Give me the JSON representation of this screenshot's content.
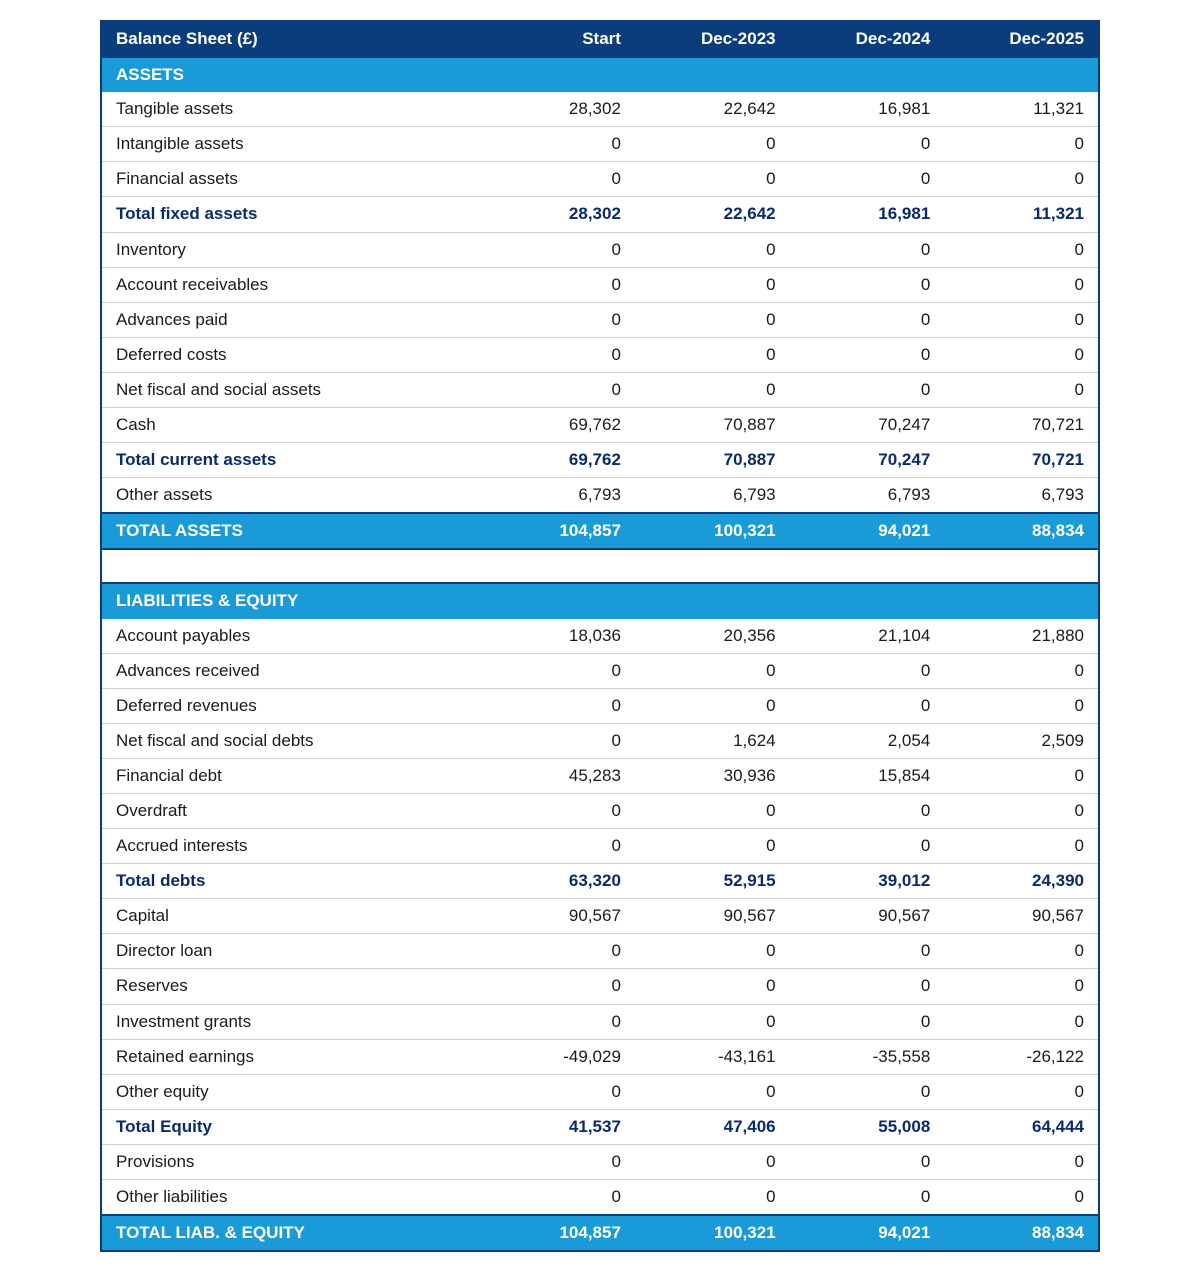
{
  "table": {
    "type": "table",
    "title_label": "Balance Sheet (£)",
    "columns": [
      "Start",
      "Dec-2023",
      "Dec-2024",
      "Dec-2025"
    ],
    "col_widths_pct": [
      38,
      15.5,
      15.5,
      15.5,
      15.5
    ],
    "col_align": [
      "left",
      "right",
      "right",
      "right",
      "right"
    ],
    "font_family": "Arial",
    "font_size_pt": 13,
    "colors": {
      "header_bg": "#0a3d7a",
      "header_text": "#ffffff",
      "section_bg": "#1a9bd7",
      "section_text": "#ffffff",
      "total_bg": "#1a9bd7",
      "total_text": "#ffffff",
      "subtotal_text": "#0a2a6b",
      "body_text": "#1a1a1a",
      "body_bg": "#ffffff",
      "row_border": "#d0d0d0",
      "outer_border": "#0a3d7a"
    },
    "sections": [
      {
        "title": "ASSETS",
        "rows": [
          {
            "label": "Tangible assets",
            "values": [
              "28,302",
              "22,642",
              "16,981",
              "11,321"
            ],
            "kind": "data"
          },
          {
            "label": "Intangible assets",
            "values": [
              "0",
              "0",
              "0",
              "0"
            ],
            "kind": "data"
          },
          {
            "label": "Financial assets",
            "values": [
              "0",
              "0",
              "0",
              "0"
            ],
            "kind": "data"
          },
          {
            "label": "Total fixed assets",
            "values": [
              "28,302",
              "22,642",
              "16,981",
              "11,321"
            ],
            "kind": "subtotal"
          },
          {
            "label": "Inventory",
            "values": [
              "0",
              "0",
              "0",
              "0"
            ],
            "kind": "data"
          },
          {
            "label": "Account receivables",
            "values": [
              "0",
              "0",
              "0",
              "0"
            ],
            "kind": "data"
          },
          {
            "label": "Advances paid",
            "values": [
              "0",
              "0",
              "0",
              "0"
            ],
            "kind": "data"
          },
          {
            "label": "Deferred costs",
            "values": [
              "0",
              "0",
              "0",
              "0"
            ],
            "kind": "data"
          },
          {
            "label": "Net fiscal and social assets",
            "values": [
              "0",
              "0",
              "0",
              "0"
            ],
            "kind": "data"
          },
          {
            "label": "Cash",
            "values": [
              "69,762",
              "70,887",
              "70,247",
              "70,721"
            ],
            "kind": "data"
          },
          {
            "label": "Total current assets",
            "values": [
              "69,762",
              "70,887",
              "70,247",
              "70,721"
            ],
            "kind": "subtotal"
          },
          {
            "label": "Other assets",
            "values": [
              "6,793",
              "6,793",
              "6,793",
              "6,793"
            ],
            "kind": "data"
          }
        ],
        "total": {
          "label": "TOTAL ASSETS",
          "values": [
            "104,857",
            "100,321",
            "94,021",
            "88,834"
          ]
        }
      },
      {
        "title": "LIABILITIES & EQUITY",
        "rows": [
          {
            "label": "Account payables",
            "values": [
              "18,036",
              "20,356",
              "21,104",
              "21,880"
            ],
            "kind": "data"
          },
          {
            "label": "Advances received",
            "values": [
              "0",
              "0",
              "0",
              "0"
            ],
            "kind": "data"
          },
          {
            "label": "Deferred revenues",
            "values": [
              "0",
              "0",
              "0",
              "0"
            ],
            "kind": "data"
          },
          {
            "label": "Net fiscal and social debts",
            "values": [
              "0",
              "1,624",
              "2,054",
              "2,509"
            ],
            "kind": "data"
          },
          {
            "label": "Financial debt",
            "values": [
              "45,283",
              "30,936",
              "15,854",
              "0"
            ],
            "kind": "data"
          },
          {
            "label": "Overdraft",
            "values": [
              "0",
              "0",
              "0",
              "0"
            ],
            "kind": "data"
          },
          {
            "label": "Accrued interests",
            "values": [
              "0",
              "0",
              "0",
              "0"
            ],
            "kind": "data"
          },
          {
            "label": "Total debts",
            "values": [
              "63,320",
              "52,915",
              "39,012",
              "24,390"
            ],
            "kind": "subtotal"
          },
          {
            "label": "Capital",
            "values": [
              "90,567",
              "90,567",
              "90,567",
              "90,567"
            ],
            "kind": "data"
          },
          {
            "label": "Director loan",
            "values": [
              "0",
              "0",
              "0",
              "0"
            ],
            "kind": "data"
          },
          {
            "label": "Reserves",
            "values": [
              "0",
              "0",
              "0",
              "0"
            ],
            "kind": "data"
          },
          {
            "label": "Investment grants",
            "values": [
              "0",
              "0",
              "0",
              "0"
            ],
            "kind": "data"
          },
          {
            "label": "Retained earnings",
            "values": [
              "-49,029",
              "-43,161",
              "-35,558",
              "-26,122"
            ],
            "kind": "data"
          },
          {
            "label": "Other equity",
            "values": [
              "0",
              "0",
              "0",
              "0"
            ],
            "kind": "data"
          },
          {
            "label": "Total Equity",
            "values": [
              "41,537",
              "47,406",
              "55,008",
              "64,444"
            ],
            "kind": "subtotal"
          },
          {
            "label": "Provisions",
            "values": [
              "0",
              "0",
              "0",
              "0"
            ],
            "kind": "data"
          },
          {
            "label": "Other liabilities",
            "values": [
              "0",
              "0",
              "0",
              "0"
            ],
            "kind": "data"
          }
        ],
        "total": {
          "label": "TOTAL LIAB. & EQUITY",
          "values": [
            "104,857",
            "100,321",
            "94,021",
            "88,834"
          ]
        }
      }
    ]
  }
}
